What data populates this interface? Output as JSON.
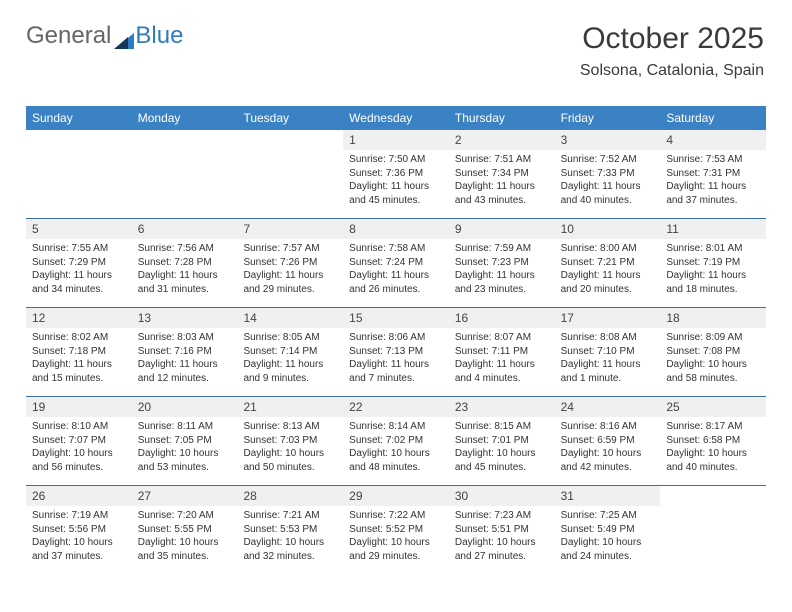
{
  "logo": {
    "part1": "General",
    "part2": "Blue"
  },
  "header": {
    "title": "October 2025",
    "location": "Solsona, Catalonia, Spain"
  },
  "colors": {
    "header_bg": "#3b82c4",
    "header_text": "#ffffff",
    "daynum_bg": "#eef0f2",
    "rule": "#3b6fa5",
    "logo_gray": "#666666",
    "logo_blue": "#2f7bbf",
    "text": "#333333"
  },
  "weekdays": [
    "Sunday",
    "Monday",
    "Tuesday",
    "Wednesday",
    "Thursday",
    "Friday",
    "Saturday"
  ],
  "weeks": [
    [
      {
        "n": "",
        "sunrise": "",
        "sunset": "",
        "daylight": ""
      },
      {
        "n": "",
        "sunrise": "",
        "sunset": "",
        "daylight": ""
      },
      {
        "n": "",
        "sunrise": "",
        "sunset": "",
        "daylight": ""
      },
      {
        "n": "1",
        "sunrise": "Sunrise: 7:50 AM",
        "sunset": "Sunset: 7:36 PM",
        "daylight": "Daylight: 11 hours and 45 minutes."
      },
      {
        "n": "2",
        "sunrise": "Sunrise: 7:51 AM",
        "sunset": "Sunset: 7:34 PM",
        "daylight": "Daylight: 11 hours and 43 minutes."
      },
      {
        "n": "3",
        "sunrise": "Sunrise: 7:52 AM",
        "sunset": "Sunset: 7:33 PM",
        "daylight": "Daylight: 11 hours and 40 minutes."
      },
      {
        "n": "4",
        "sunrise": "Sunrise: 7:53 AM",
        "sunset": "Sunset: 7:31 PM",
        "daylight": "Daylight: 11 hours and 37 minutes."
      }
    ],
    [
      {
        "n": "5",
        "sunrise": "Sunrise: 7:55 AM",
        "sunset": "Sunset: 7:29 PM",
        "daylight": "Daylight: 11 hours and 34 minutes."
      },
      {
        "n": "6",
        "sunrise": "Sunrise: 7:56 AM",
        "sunset": "Sunset: 7:28 PM",
        "daylight": "Daylight: 11 hours and 31 minutes."
      },
      {
        "n": "7",
        "sunrise": "Sunrise: 7:57 AM",
        "sunset": "Sunset: 7:26 PM",
        "daylight": "Daylight: 11 hours and 29 minutes."
      },
      {
        "n": "8",
        "sunrise": "Sunrise: 7:58 AM",
        "sunset": "Sunset: 7:24 PM",
        "daylight": "Daylight: 11 hours and 26 minutes."
      },
      {
        "n": "9",
        "sunrise": "Sunrise: 7:59 AM",
        "sunset": "Sunset: 7:23 PM",
        "daylight": "Daylight: 11 hours and 23 minutes."
      },
      {
        "n": "10",
        "sunrise": "Sunrise: 8:00 AM",
        "sunset": "Sunset: 7:21 PM",
        "daylight": "Daylight: 11 hours and 20 minutes."
      },
      {
        "n": "11",
        "sunrise": "Sunrise: 8:01 AM",
        "sunset": "Sunset: 7:19 PM",
        "daylight": "Daylight: 11 hours and 18 minutes."
      }
    ],
    [
      {
        "n": "12",
        "sunrise": "Sunrise: 8:02 AM",
        "sunset": "Sunset: 7:18 PM",
        "daylight": "Daylight: 11 hours and 15 minutes."
      },
      {
        "n": "13",
        "sunrise": "Sunrise: 8:03 AM",
        "sunset": "Sunset: 7:16 PM",
        "daylight": "Daylight: 11 hours and 12 minutes."
      },
      {
        "n": "14",
        "sunrise": "Sunrise: 8:05 AM",
        "sunset": "Sunset: 7:14 PM",
        "daylight": "Daylight: 11 hours and 9 minutes."
      },
      {
        "n": "15",
        "sunrise": "Sunrise: 8:06 AM",
        "sunset": "Sunset: 7:13 PM",
        "daylight": "Daylight: 11 hours and 7 minutes."
      },
      {
        "n": "16",
        "sunrise": "Sunrise: 8:07 AM",
        "sunset": "Sunset: 7:11 PM",
        "daylight": "Daylight: 11 hours and 4 minutes."
      },
      {
        "n": "17",
        "sunrise": "Sunrise: 8:08 AM",
        "sunset": "Sunset: 7:10 PM",
        "daylight": "Daylight: 11 hours and 1 minute."
      },
      {
        "n": "18",
        "sunrise": "Sunrise: 8:09 AM",
        "sunset": "Sunset: 7:08 PM",
        "daylight": "Daylight: 10 hours and 58 minutes."
      }
    ],
    [
      {
        "n": "19",
        "sunrise": "Sunrise: 8:10 AM",
        "sunset": "Sunset: 7:07 PM",
        "daylight": "Daylight: 10 hours and 56 minutes."
      },
      {
        "n": "20",
        "sunrise": "Sunrise: 8:11 AM",
        "sunset": "Sunset: 7:05 PM",
        "daylight": "Daylight: 10 hours and 53 minutes."
      },
      {
        "n": "21",
        "sunrise": "Sunrise: 8:13 AM",
        "sunset": "Sunset: 7:03 PM",
        "daylight": "Daylight: 10 hours and 50 minutes."
      },
      {
        "n": "22",
        "sunrise": "Sunrise: 8:14 AM",
        "sunset": "Sunset: 7:02 PM",
        "daylight": "Daylight: 10 hours and 48 minutes."
      },
      {
        "n": "23",
        "sunrise": "Sunrise: 8:15 AM",
        "sunset": "Sunset: 7:01 PM",
        "daylight": "Daylight: 10 hours and 45 minutes."
      },
      {
        "n": "24",
        "sunrise": "Sunrise: 8:16 AM",
        "sunset": "Sunset: 6:59 PM",
        "daylight": "Daylight: 10 hours and 42 minutes."
      },
      {
        "n": "25",
        "sunrise": "Sunrise: 8:17 AM",
        "sunset": "Sunset: 6:58 PM",
        "daylight": "Daylight: 10 hours and 40 minutes."
      }
    ],
    [
      {
        "n": "26",
        "sunrise": "Sunrise: 7:19 AM",
        "sunset": "Sunset: 5:56 PM",
        "daylight": "Daylight: 10 hours and 37 minutes."
      },
      {
        "n": "27",
        "sunrise": "Sunrise: 7:20 AM",
        "sunset": "Sunset: 5:55 PM",
        "daylight": "Daylight: 10 hours and 35 minutes."
      },
      {
        "n": "28",
        "sunrise": "Sunrise: 7:21 AM",
        "sunset": "Sunset: 5:53 PM",
        "daylight": "Daylight: 10 hours and 32 minutes."
      },
      {
        "n": "29",
        "sunrise": "Sunrise: 7:22 AM",
        "sunset": "Sunset: 5:52 PM",
        "daylight": "Daylight: 10 hours and 29 minutes."
      },
      {
        "n": "30",
        "sunrise": "Sunrise: 7:23 AM",
        "sunset": "Sunset: 5:51 PM",
        "daylight": "Daylight: 10 hours and 27 minutes."
      },
      {
        "n": "31",
        "sunrise": "Sunrise: 7:25 AM",
        "sunset": "Sunset: 5:49 PM",
        "daylight": "Daylight: 10 hours and 24 minutes."
      },
      {
        "n": "",
        "sunrise": "",
        "sunset": "",
        "daylight": ""
      }
    ]
  ]
}
